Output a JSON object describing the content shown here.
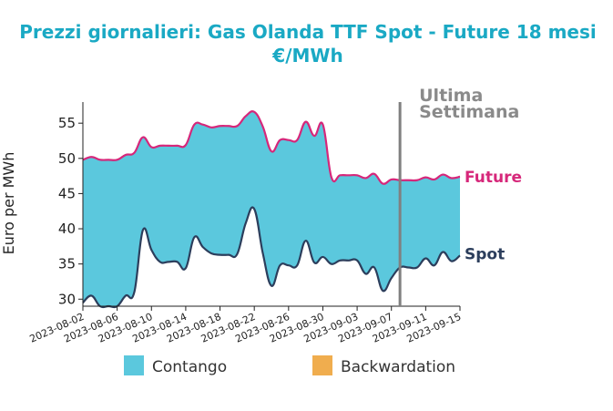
{
  "chart_data": {
    "type": "area",
    "title_line1": "Prezzi giornalieri: Gas Olanda TTF Spot - Future 18 mesi",
    "title_line2": "€/MWh",
    "ylabel": "Euro per MWh",
    "xlabel": "",
    "ylim": [
      29,
      58
    ],
    "yticks": [
      30,
      35,
      40,
      45,
      50,
      55
    ],
    "x_start": "2023-08-02",
    "x_end": "2023-09-15",
    "xticks": [
      "2023-08-02",
      "2023-08-06",
      "2023-08-10",
      "2023-08-14",
      "2023-08-18",
      "2023-08-22",
      "2023-08-26",
      "2023-08-30",
      "2023-09-03",
      "2023-09-07",
      "2023-09-11",
      "2023-09-15"
    ],
    "series": [
      {
        "name": "Future",
        "color": "#d6277a",
        "x": [
          "2023-08-02",
          "2023-08-03",
          "2023-08-04",
          "2023-08-05",
          "2023-08-06",
          "2023-08-07",
          "2023-08-08",
          "2023-08-09",
          "2023-08-10",
          "2023-08-11",
          "2023-08-12",
          "2023-08-13",
          "2023-08-14",
          "2023-08-15",
          "2023-08-16",
          "2023-08-17",
          "2023-08-18",
          "2023-08-19",
          "2023-08-20",
          "2023-08-21",
          "2023-08-22",
          "2023-08-23",
          "2023-08-24",
          "2023-08-25",
          "2023-08-26",
          "2023-08-27",
          "2023-08-28",
          "2023-08-29",
          "2023-08-30",
          "2023-08-31",
          "2023-09-01",
          "2023-09-02",
          "2023-09-03",
          "2023-09-04",
          "2023-09-05",
          "2023-09-06",
          "2023-09-07",
          "2023-09-08",
          "2023-09-09",
          "2023-09-10",
          "2023-09-11",
          "2023-09-12",
          "2023-09-13",
          "2023-09-14",
          "2023-09-15"
        ],
        "values": [
          49.8,
          50.2,
          49.8,
          49.8,
          49.8,
          50.5,
          50.8,
          53.0,
          51.6,
          51.8,
          51.8,
          51.8,
          51.9,
          54.8,
          54.8,
          54.4,
          54.6,
          54.6,
          54.6,
          56.0,
          56.6,
          54.5,
          51.0,
          52.6,
          52.6,
          52.6,
          55.2,
          53.2,
          54.8,
          47.3,
          47.6,
          47.6,
          47.6,
          47.2,
          47.8,
          46.4,
          47.0,
          46.9,
          46.9,
          46.9,
          47.3,
          47.0,
          47.7,
          47.2,
          47.4
        ]
      },
      {
        "name": "Spot",
        "color": "#2c3e5c",
        "x": [
          "2023-08-02",
          "2023-08-03",
          "2023-08-04",
          "2023-08-05",
          "2023-08-06",
          "2023-08-07",
          "2023-08-08",
          "2023-08-09",
          "2023-08-10",
          "2023-08-11",
          "2023-08-12",
          "2023-08-13",
          "2023-08-14",
          "2023-08-15",
          "2023-08-16",
          "2023-08-17",
          "2023-08-18",
          "2023-08-19",
          "2023-08-20",
          "2023-08-21",
          "2023-08-22",
          "2023-08-23",
          "2023-08-24",
          "2023-08-25",
          "2023-08-26",
          "2023-08-27",
          "2023-08-28",
          "2023-08-29",
          "2023-08-30",
          "2023-08-31",
          "2023-09-01",
          "2023-09-02",
          "2023-09-03",
          "2023-09-04",
          "2023-09-05",
          "2023-09-06",
          "2023-09-07",
          "2023-09-08",
          "2023-09-09",
          "2023-09-10",
          "2023-09-11",
          "2023-09-12",
          "2023-09-13",
          "2023-09-14",
          "2023-09-15"
        ],
        "values": [
          29.5,
          30.5,
          29.0,
          29.0,
          29.0,
          30.5,
          31.0,
          39.8,
          37.0,
          35.3,
          35.3,
          35.3,
          34.4,
          38.8,
          37.4,
          36.5,
          36.3,
          36.3,
          36.4,
          40.8,
          42.8,
          36.5,
          31.9,
          34.8,
          34.8,
          34.8,
          38.3,
          35.2,
          36.0,
          35.0,
          35.5,
          35.5,
          35.5,
          33.6,
          34.5,
          31.2,
          33.0,
          34.5,
          34.5,
          34.5,
          35.8,
          34.8,
          36.7,
          35.4,
          36.2
        ]
      }
    ],
    "vline": {
      "x": "2023-09-08",
      "label_line1": "Ultima",
      "label_line2": "Settimana",
      "color": "#808080"
    },
    "legend": [
      {
        "label": "Contango",
        "color": "#5bc8dd"
      },
      {
        "label": "Backwardation",
        "color": "#f0ad4e"
      }
    ],
    "legend_position": "bottom",
    "grid": false
  }
}
